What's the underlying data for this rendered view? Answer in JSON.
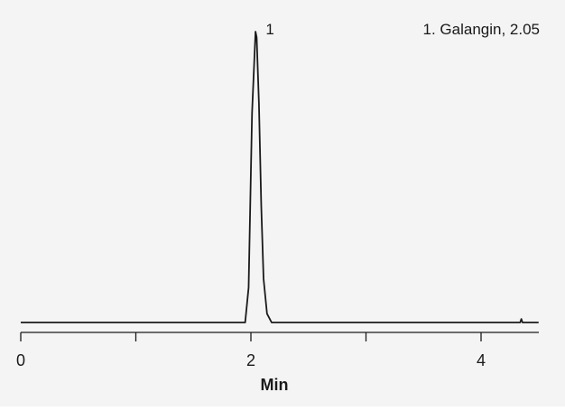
{
  "chart_data": {
    "type": "line",
    "title": "",
    "xlabel": "Min",
    "ylabel": "",
    "xlim": [
      0,
      4.5
    ],
    "x_ticks": [
      {
        "value": 0,
        "label": "0"
      },
      {
        "value": 1,
        "label": ""
      },
      {
        "value": 2,
        "label": "2"
      },
      {
        "value": 3,
        "label": ""
      },
      {
        "value": 4,
        "label": "4"
      }
    ],
    "grid": false,
    "series": [
      {
        "x": [
          0,
          1.95,
          1.98,
          2.01,
          2.04,
          2.05,
          2.07,
          2.09,
          2.11,
          2.14,
          2.18,
          4.34,
          4.35,
          4.36,
          4.5
        ],
        "y": [
          0,
          0.0,
          0.12,
          0.72,
          1.0,
          0.98,
          0.75,
          0.4,
          0.15,
          0.03,
          0.0,
          0.0,
          0.012,
          0.0,
          0.0
        ]
      }
    ],
    "peak_annotations": [
      {
        "label": "1",
        "x": 2.05,
        "y": 1.0
      }
    ],
    "legend": [
      "1. Galangin, 2.05"
    ],
    "line_color": "#1a1a1a",
    "background_color": "#f4f4f4"
  }
}
